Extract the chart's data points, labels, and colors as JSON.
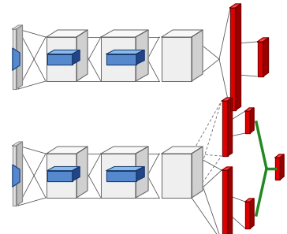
{
  "bg_color": "#ffffff",
  "cube_color": "#efefef",
  "cube_top": "#f8f8f8",
  "cube_side": "#d0d0d0",
  "cube_edge": "#666666",
  "plate_color": "#e0e0e0",
  "plate_side": "#bbbbbb",
  "plate_edge": "#888888",
  "blue_front": "#5588cc",
  "blue_top": "#88bbee",
  "blue_side": "#224488",
  "blue_edge": "#1a3a6a",
  "red_front": "#dd0000",
  "red_top": "#ff4444",
  "red_side": "#990000",
  "red_edge": "#770000",
  "green_color": "#228822",
  "line_color": "#555555",
  "dashed_color": "#666666"
}
